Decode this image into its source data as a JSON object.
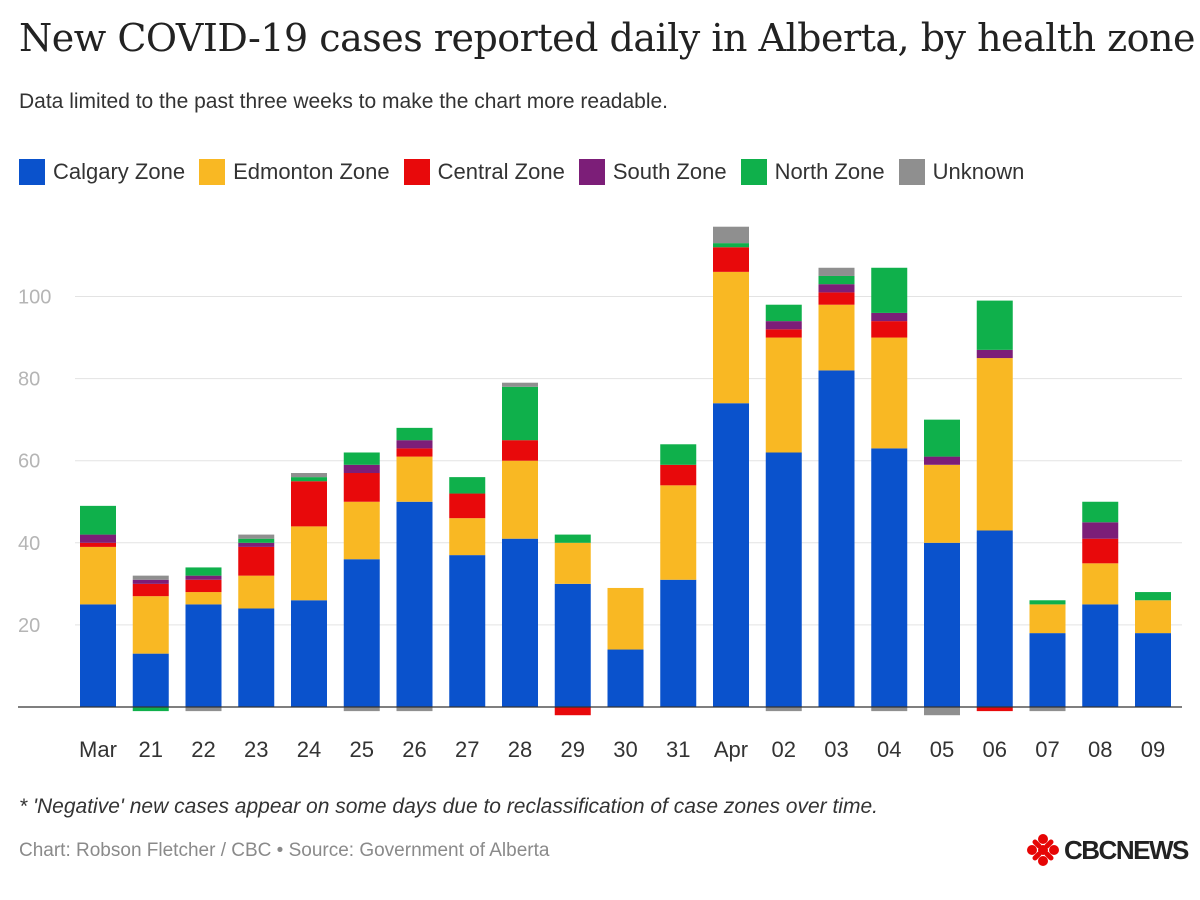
{
  "header": {
    "title": "New COVID-19 cases reported daily in Alberta, by health zone",
    "subtitle": "Data limited to the past three weeks to make the chart more readable."
  },
  "footer": {
    "note": "* 'Negative' new cases appear on some days due to reclassification of case zones over time.",
    "credit": "Chart: Robson Fletcher / CBC • Source: Government of Alberta",
    "logo_text": "CBCNEWS"
  },
  "chart_data": {
    "type": "bar",
    "stacked": true,
    "title": "New COVID-19 cases reported daily in Alberta, by health zone",
    "subtitle": "Data limited to the past three weeks to make the chart more readable.",
    "xlabel": "",
    "ylabel": "",
    "ylim": [
      -2,
      117
    ],
    "yticks": [
      20,
      40,
      60,
      80,
      100
    ],
    "grid": true,
    "legend_position": "top-left",
    "categories": [
      "Mar",
      "21",
      "22",
      "23",
      "24",
      "25",
      "26",
      "27",
      "28",
      "29",
      "30",
      "31",
      "Apr",
      "02",
      "03",
      "04",
      "05",
      "06",
      "07",
      "08",
      "09"
    ],
    "series": [
      {
        "name": "Calgary Zone",
        "color": "#0a52cc",
        "values": [
          25,
          13,
          25,
          24,
          26,
          36,
          50,
          37,
          41,
          30,
          14,
          31,
          74,
          62,
          82,
          63,
          40,
          43,
          18,
          25,
          18
        ]
      },
      {
        "name": "Edmonton Zone",
        "color": "#f9b823",
        "values": [
          14,
          14,
          3,
          8,
          18,
          14,
          11,
          9,
          19,
          10,
          15,
          23,
          32,
          28,
          16,
          27,
          19,
          42,
          7,
          10,
          8
        ]
      },
      {
        "name": "Central Zone",
        "color": "#e8090b",
        "values": [
          1,
          3,
          3,
          7,
          11,
          7,
          2,
          6,
          5,
          -2,
          0,
          5,
          6,
          2,
          3,
          4,
          0,
          -1,
          0,
          6,
          0
        ]
      },
      {
        "name": "South Zone",
        "color": "#7c1e78",
        "values": [
          2,
          1,
          1,
          1,
          0,
          2,
          2,
          0,
          0,
          0,
          0,
          0,
          0,
          2,
          2,
          2,
          2,
          2,
          0,
          4,
          0
        ]
      },
      {
        "name": "North Zone",
        "color": "#0fb04b",
        "values": [
          7,
          -1,
          2,
          1,
          1,
          3,
          3,
          4,
          13,
          2,
          0,
          5,
          1,
          4,
          2,
          11,
          9,
          12,
          1,
          5,
          2
        ]
      },
      {
        "name": "Unknown",
        "color": "#8f8f8f",
        "values": [
          0,
          1,
          -1,
          1,
          1,
          -1,
          -1,
          0,
          1,
          0,
          0,
          0,
          4,
          -1,
          2,
          -1,
          -2,
          0,
          -1,
          0,
          0
        ]
      }
    ]
  }
}
